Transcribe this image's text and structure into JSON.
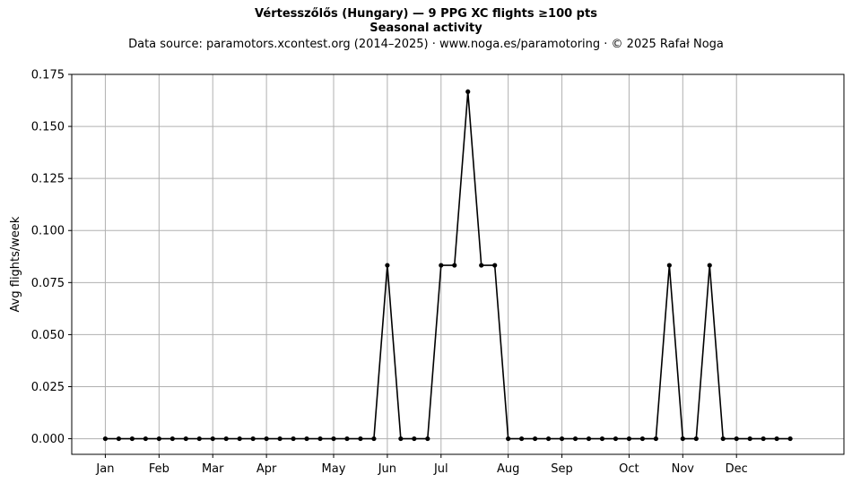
{
  "chart_data": {
    "type": "line",
    "title": "Vértesszőlős (Hungary)  —  9 PPG XC flights ≥100 pts",
    "subtitle": "Seasonal activity",
    "caption": "Data source: paramotors.xcontest.org (2014–2025)  ·  www.noga.es/paramotoring  ·  © 2025 Rafał Noga",
    "ylabel": "Avg flights/week",
    "xlabel": "",
    "x_tick_labels": [
      "Jan",
      "Feb",
      "Mar",
      "Apr",
      "May",
      "Jun",
      "Jul",
      "Aug",
      "Sep",
      "Oct",
      "Nov",
      "Dec"
    ],
    "x_tick_weeks": [
      1,
      5,
      9,
      13,
      18,
      22,
      26,
      31,
      35,
      40,
      44,
      48
    ],
    "xlim": [
      -1.5,
      56
    ],
    "ylim": [
      -0.0075,
      0.175
    ],
    "y_ticks": [
      0.0,
      0.025,
      0.05,
      0.075,
      0.1,
      0.125,
      0.15,
      0.175
    ],
    "y_tick_labels": [
      "0.000",
      "0.025",
      "0.050",
      "0.075",
      "0.100",
      "0.125",
      "0.150",
      "0.175"
    ],
    "grid": true,
    "line_color": "#000000",
    "series": [
      {
        "x": [
          1,
          2,
          3,
          4,
          5,
          6,
          7,
          8,
          9,
          10,
          11,
          12,
          13,
          14,
          15,
          16,
          17,
          18,
          19,
          20,
          21,
          22,
          23,
          24,
          25,
          26,
          27,
          28,
          29,
          30,
          31,
          32,
          33,
          34,
          35,
          36,
          37,
          38,
          39,
          40,
          41,
          42,
          43,
          44,
          45,
          46,
          47,
          48,
          49,
          50,
          51,
          52
        ],
        "values": [
          0,
          0,
          0,
          0,
          0,
          0,
          0,
          0,
          0,
          0,
          0,
          0,
          0,
          0,
          0,
          0,
          0,
          0,
          0,
          0,
          0,
          0.0833,
          0,
          0,
          0,
          0.0833,
          0.0833,
          0.1667,
          0.0833,
          0.0833,
          0,
          0,
          0,
          0,
          0,
          0,
          0,
          0,
          0,
          0,
          0,
          0,
          0.0833,
          0,
          0,
          0.0833,
          0,
          0,
          0,
          0,
          0,
          0
        ]
      }
    ]
  }
}
